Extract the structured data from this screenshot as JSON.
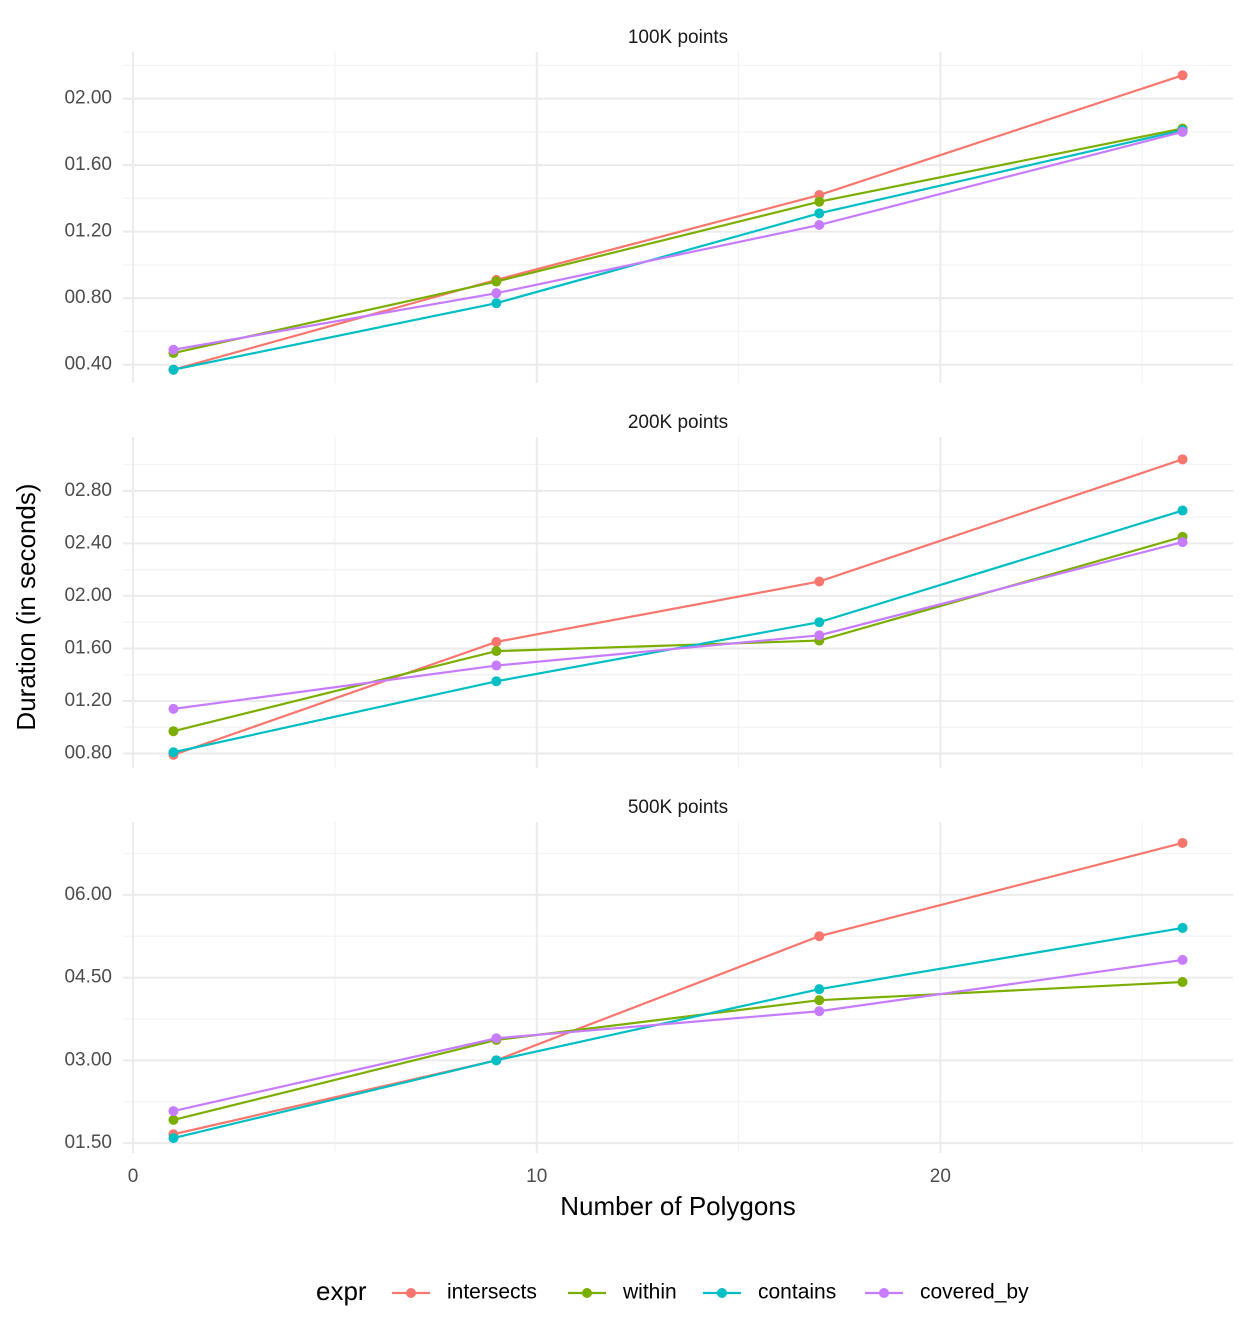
{
  "chart_data": [
    {
      "type": "line",
      "title": "100K points",
      "legend_title": "expr",
      "x": [
        1,
        9,
        17,
        26
      ],
      "xlim": [
        -0.25,
        27.25
      ],
      "xticks": [
        0,
        10,
        20
      ],
      "x_minor_ticks": [
        5,
        15,
        25
      ],
      "ylim": [
        0.29,
        2.28
      ],
      "yticks": [
        {
          "value": 0.4,
          "label": "00.40"
        },
        {
          "value": 0.8,
          "label": "00.80"
        },
        {
          "value": 1.2,
          "label": "01.20"
        },
        {
          "value": 1.6,
          "label": "01.60"
        },
        {
          "value": 2.0,
          "label": "02.00"
        }
      ],
      "y_minor_ticks": [
        0.6,
        1.0,
        1.4,
        1.8,
        2.2
      ],
      "grid": true,
      "series": [
        {
          "name": "intersects",
          "color": "#F8766D",
          "values": [
            0.37,
            0.91,
            1.42,
            2.14
          ]
        },
        {
          "name": "within",
          "color": "#7CAE00",
          "values": [
            0.47,
            0.9,
            1.38,
            1.82
          ]
        },
        {
          "name": "contains",
          "color": "#00BFC4",
          "values": [
            0.37,
            0.77,
            1.31,
            1.81
          ]
        },
        {
          "name": "covered_by",
          "color": "#C77CFF",
          "values": [
            0.49,
            0.83,
            1.24,
            1.8
          ]
        }
      ]
    },
    {
      "type": "line",
      "title": "200K points",
      "y_label": "Duration (in seconds)",
      "x": [
        1,
        9,
        17,
        26
      ],
      "xlim": [
        -0.25,
        27.25
      ],
      "xticks": [
        0,
        10,
        20
      ],
      "x_minor_ticks": [
        5,
        15,
        25
      ],
      "ylim": [
        0.69,
        3.21
      ],
      "yticks": [
        {
          "value": 0.8,
          "label": "00.80"
        },
        {
          "value": 1.2,
          "label": "01.20"
        },
        {
          "value": 1.6,
          "label": "01.60"
        },
        {
          "value": 2.0,
          "label": "02.00"
        },
        {
          "value": 2.4,
          "label": "02.40"
        },
        {
          "value": 2.8,
          "label": "02.80"
        }
      ],
      "y_minor_ticks": [
        1.0,
        1.4,
        1.8,
        2.2,
        2.6,
        3.0
      ],
      "grid": true,
      "series": [
        {
          "name": "intersects",
          "color": "#F8766D",
          "values": [
            0.79,
            1.65,
            2.11,
            3.04
          ]
        },
        {
          "name": "within",
          "color": "#7CAE00",
          "values": [
            0.97,
            1.58,
            1.66,
            2.45
          ]
        },
        {
          "name": "contains",
          "color": "#00BFC4",
          "values": [
            0.81,
            1.35,
            1.8,
            2.65
          ]
        },
        {
          "name": "covered_by",
          "color": "#C77CFF",
          "values": [
            1.14,
            1.47,
            1.7,
            2.41
          ]
        }
      ]
    },
    {
      "type": "line",
      "title": "500K points",
      "x_label": "Number of Polygons",
      "x": [
        1,
        9,
        17,
        26
      ],
      "xlim": [
        -0.25,
        27.25
      ],
      "xticks": [
        0,
        10,
        20
      ],
      "x_minor_ticks": [
        5,
        15,
        25
      ],
      "ylim": [
        1.32,
        7.32
      ],
      "yticks": [
        {
          "value": 1.5,
          "label": "01.50"
        },
        {
          "value": 3.0,
          "label": "03.00"
        },
        {
          "value": 4.5,
          "label": "04.50"
        },
        {
          "value": 6.0,
          "label": "06.00"
        }
      ],
      "y_minor_ticks": [
        2.25,
        3.75,
        5.25,
        6.75
      ],
      "grid": true,
      "series": [
        {
          "name": "intersects",
          "color": "#F8766D",
          "values": [
            1.66,
            3.0,
            5.25,
            6.94
          ]
        },
        {
          "name": "within",
          "color": "#7CAE00",
          "values": [
            1.92,
            3.37,
            4.09,
            4.42
          ]
        },
        {
          "name": "contains",
          "color": "#00BFC4",
          "values": [
            1.59,
            3.0,
            4.29,
            5.4
          ]
        },
        {
          "name": "covered_by",
          "color": "#C77CFF",
          "values": [
            2.08,
            3.4,
            3.89,
            4.82
          ]
        }
      ]
    }
  ]
}
